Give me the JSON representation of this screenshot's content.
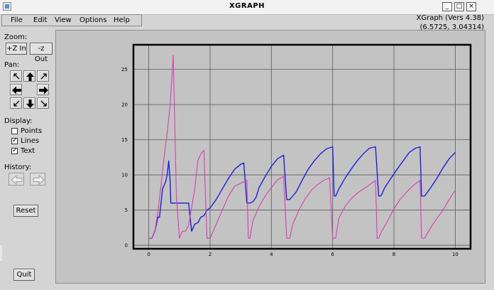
{
  "window": {
    "title": "XGRAPH",
    "buttons": [
      "_",
      "□",
      "×"
    ]
  },
  "menu": [
    "File",
    "Edit",
    "View",
    "Options",
    "Help"
  ],
  "version": "XGraph (Vers 4.38)",
  "coords": "(6.5725, 3.04314)",
  "zoom": {
    "label": "Zoom:",
    "in_label": "+Z In",
    "out_label": "-z Out"
  },
  "pan": {
    "label": "Pan:"
  },
  "display": {
    "label": "Display:",
    "options": [
      {
        "label": "Points",
        "checked": false
      },
      {
        "label": "Lines",
        "checked": true
      },
      {
        "label": "Text",
        "checked": true
      }
    ]
  },
  "history": {
    "label": "History:"
  },
  "reset_label": "Reset",
  "quit_label": "Quit",
  "chart_data": {
    "type": "line",
    "xlim": [
      -0.5,
      10.5
    ],
    "ylim": [
      -0.5,
      28.5
    ],
    "xticks": [
      0,
      2,
      4,
      6,
      8,
      10
    ],
    "yticks": [
      0,
      5,
      10,
      15,
      20,
      25
    ],
    "grid": true,
    "series": [
      {
        "color": "#1f1fd6",
        "x": [
          0,
          0.1,
          0.2,
          0.3,
          0.35,
          0.4,
          0.45,
          0.55,
          0.6,
          0.65,
          0.7,
          0.72,
          0.75,
          0.8,
          0.85,
          0.9,
          1.0,
          1.2,
          1.3,
          1.4,
          1.5,
          1.6,
          1.7,
          1.8,
          1.9,
          2.0,
          2.2,
          2.4,
          2.6,
          2.8,
          3.0,
          3.1,
          3.2,
          3.3,
          3.4,
          3.5,
          3.6,
          3.8,
          4.0,
          4.2,
          4.4,
          4.5,
          4.6,
          4.8,
          5.0,
          5.2,
          5.4,
          5.6,
          5.8,
          6.0,
          6.05,
          6.1,
          6.2,
          6.4,
          6.6,
          6.8,
          7.0,
          7.2,
          7.4,
          7.5,
          7.55,
          7.6,
          7.7,
          7.9,
          8.1,
          8.3,
          8.5,
          8.7,
          8.85,
          8.9,
          9.0,
          9.2,
          9.4,
          9.6,
          9.8,
          10.0
        ],
        "y": [
          1,
          1,
          2,
          4,
          4,
          6,
          8,
          9,
          10,
          12,
          9,
          6,
          6,
          6,
          6,
          6,
          6,
          6,
          6,
          2,
          3,
          3.2,
          4,
          4.2,
          5,
          5.3,
          6.5,
          8,
          9.5,
          10.8,
          11.5,
          11.7,
          6,
          6,
          6.2,
          6.8,
          8.2,
          9.8,
          11.2,
          12.3,
          12.8,
          6.5,
          6.5,
          7.5,
          9.2,
          10.8,
          12,
          13,
          13.7,
          14,
          7,
          7,
          8,
          9.5,
          10.8,
          12,
          13,
          13.8,
          14,
          7,
          7,
          7.2,
          8.2,
          9.5,
          10.8,
          12,
          13.2,
          13.8,
          14,
          7,
          7,
          8.2,
          9.5,
          11,
          12.3,
          13.2
        ]
      },
      {
        "color": "#d640b0",
        "x": [
          0,
          0.1,
          0.2,
          0.3,
          0.4,
          0.5,
          0.6,
          0.7,
          0.8,
          0.9,
          1.0,
          1.1,
          1.2,
          1.3,
          1.5,
          1.6,
          1.7,
          1.8,
          1.9,
          2.0,
          2.2,
          2.4,
          2.6,
          2.8,
          3.0,
          3.2,
          3.25,
          3.3,
          3.4,
          3.6,
          3.8,
          4.0,
          4.2,
          4.4,
          4.5,
          4.6,
          4.7,
          4.9,
          5.1,
          5.3,
          5.5,
          5.7,
          5.9,
          6.0,
          6.1,
          6.2,
          6.4,
          6.6,
          6.8,
          7.0,
          7.2,
          7.4,
          7.45,
          7.5,
          7.6,
          7.8,
          8.0,
          8.2,
          8.4,
          8.6,
          8.85,
          8.9,
          9.0,
          9.2,
          9.4,
          9.6,
          9.8,
          10.0
        ],
        "y": [
          1,
          1,
          2,
          4.8,
          8.5,
          12.5,
          16,
          20,
          27,
          7,
          1,
          2,
          2,
          2.8,
          8,
          12,
          13,
          13.5,
          1,
          1,
          3,
          5,
          7,
          8.4,
          8.8,
          9.3,
          1,
          1,
          3.5,
          5.5,
          7,
          8.2,
          9.3,
          9.8,
          1,
          1,
          3,
          5,
          6.6,
          7.8,
          8.6,
          9.2,
          9.6,
          1,
          1,
          3.8,
          5.5,
          6.6,
          7.4,
          8,
          8.6,
          9.2,
          1,
          1,
          2,
          3.5,
          5.2,
          6.5,
          7.5,
          8.4,
          9.2,
          1,
          1,
          2.5,
          3.8,
          5,
          6.5,
          7.8
        ]
      }
    ]
  }
}
